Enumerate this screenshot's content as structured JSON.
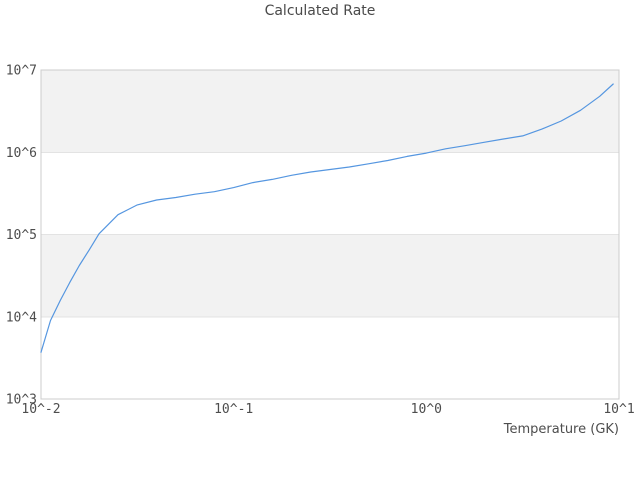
{
  "chart_data": {
    "type": "line",
    "title": "Calculated Rate",
    "xlabel": "Temperature (GK)",
    "ylabel": "",
    "x_scale": "log",
    "y_scale": "log",
    "xlim": [
      0.01,
      10
    ],
    "ylim": [
      1000,
      10000000
    ],
    "grid": "horizontal-only",
    "legend": "none",
    "x_ticks": [
      {
        "label": "10^-2",
        "value": 0.01
      },
      {
        "label": "10^-1",
        "value": 0.1
      },
      {
        "label": "10^0",
        "value": 1
      },
      {
        "label": "10^1",
        "value": 10
      }
    ],
    "y_ticks": [
      {
        "label": "10^3",
        "value": 1000
      },
      {
        "label": "10^4",
        "value": 10000
      },
      {
        "label": "10^5",
        "value": 100000
      },
      {
        "label": "10^6",
        "value": 1000000
      },
      {
        "label": "10^7",
        "value": 10000000
      }
    ],
    "bands": [
      {
        "from": 1000000,
        "to": 10000000,
        "color": "#f2f2f2"
      },
      {
        "from": 10000,
        "to": 100000,
        "color": "#f2f2f2"
      }
    ],
    "colors": {
      "line": "#5596e0",
      "grid": "#e3e3e3",
      "border": "#cccccc",
      "text": "#4d4d4d"
    },
    "series": [
      {
        "name": "calculated-rate",
        "color": "#5596e0",
        "points": [
          [
            0.01,
            3700
          ],
          [
            0.0112,
            9000
          ],
          [
            0.0126,
            15800
          ],
          [
            0.0141,
            26000
          ],
          [
            0.0158,
            42000
          ],
          [
            0.0178,
            65000
          ],
          [
            0.02,
            102000
          ],
          [
            0.0251,
            174000
          ],
          [
            0.0316,
            229000
          ],
          [
            0.0398,
            263000
          ],
          [
            0.0501,
            282000
          ],
          [
            0.0631,
            309000
          ],
          [
            0.0794,
            331000
          ],
          [
            0.1,
            372000
          ],
          [
            0.1259,
            427000
          ],
          [
            0.1585,
            468000
          ],
          [
            0.1995,
            525000
          ],
          [
            0.2512,
            575000
          ],
          [
            0.3162,
            617000
          ],
          [
            0.3981,
            661000
          ],
          [
            0.5012,
            724000
          ],
          [
            0.631,
            794000
          ],
          [
            0.7943,
            891000
          ],
          [
            1.0,
            977000
          ],
          [
            1.2589,
            1100000
          ],
          [
            1.5849,
            1200000
          ],
          [
            1.9953,
            1320000
          ],
          [
            2.5119,
            1450000
          ],
          [
            3.1623,
            1580000
          ],
          [
            3.9811,
            1910000
          ],
          [
            5.0119,
            2400000
          ],
          [
            6.3096,
            3240000
          ],
          [
            7.9433,
            4790000
          ],
          [
            9.3325,
            6760000
          ]
        ]
      }
    ]
  }
}
